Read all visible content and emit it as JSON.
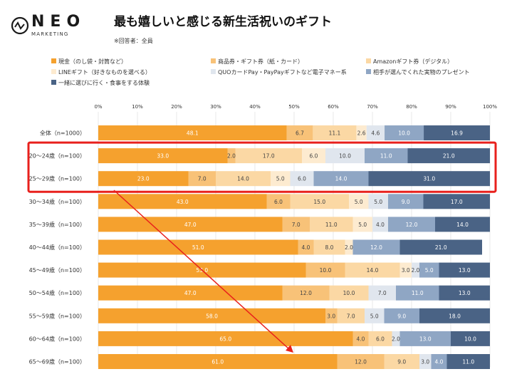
{
  "header": {
    "logo_text": "NEO",
    "logo_sub": "MARKETING",
    "title": "最も嬉しいと感じる新生活祝いのギフト",
    "note": "※回答者：全員"
  },
  "chart_data": {
    "type": "bar",
    "orientation": "horizontal",
    "stacked": true,
    "percent_stacked": true,
    "x_ticks": [
      "0%",
      "10%",
      "20%",
      "30%",
      "40%",
      "50%",
      "60%",
      "70%",
      "80%",
      "90%",
      "100%"
    ],
    "xlim": [
      0,
      100
    ],
    "grid": true,
    "legend_position": "top",
    "categories": [
      "全体（n=1000）",
      "20～24歳（n=100）",
      "25～29歳（n=100）",
      "30～34歳（n=100）",
      "35～39歳（n=100）",
      "40～44歳（n=100）",
      "45～49歳（n=100）",
      "50～54歳（n=100）",
      "55～59歳（n=100）",
      "60～64歳（n=100）",
      "65～69歳（n=100）"
    ],
    "series": [
      {
        "name": "現金（のし袋・封筒など）",
        "color": "#f5a12e",
        "values": [
          48.1,
          33.0,
          23.0,
          43.0,
          47.0,
          51.0,
          53.0,
          47.0,
          58.0,
          65.0,
          61.0
        ]
      },
      {
        "name": "商品券・ギフト券（紙・カード）",
        "color": "#f8c278",
        "values": [
          6.7,
          2.0,
          7.0,
          6.0,
          7.0,
          4.0,
          10.0,
          12.0,
          3.0,
          4.0,
          12.0
        ]
      },
      {
        "name": "Amazonギフト券（デジタル）",
        "color": "#fbd8a4",
        "values": [
          11.1,
          17.0,
          14.0,
          15.0,
          11.0,
          8.0,
          14.0,
          10.0,
          7.0,
          6.0,
          9.0
        ]
      },
      {
        "name": "LINEギフト（好きなものを選べる）",
        "color": "#fdebd0",
        "values": [
          2.6,
          6.0,
          5.0,
          5.0,
          5.0,
          2.0,
          3.0,
          0.0,
          0.0,
          0.0,
          0.0
        ]
      },
      {
        "name": "QUOカードPay・PayPayギフトなど電子マネー系",
        "color": "#e0e6ee",
        "values": [
          4.6,
          10.0,
          6.0,
          5.0,
          4.0,
          0.0,
          2.0,
          7.0,
          5.0,
          2.0,
          3.0
        ]
      },
      {
        "name": "相手が選んでくれた実物のプレゼント",
        "color": "#8fa6c4",
        "values": [
          10.0,
          11.0,
          14.0,
          9.0,
          12.0,
          12.0,
          5.0,
          11.0,
          9.0,
          13.0,
          4.0
        ]
      },
      {
        "name": "一緒に選びに行く・食事をする体験",
        "color": "#4a6385",
        "values": [
          16.9,
          21.0,
          31.0,
          17.0,
          14.0,
          21.0,
          13.0,
          13.0,
          18.0,
          10.0,
          11.0
        ]
      }
    ],
    "labels": [
      [
        "48.1",
        "6.7",
        "11.1",
        "2.6",
        "4.6",
        "10.0",
        "16.9"
      ],
      [
        "33.0",
        "2.0",
        "17.0",
        "6.0",
        "10.0",
        "11.0",
        "21.0"
      ],
      [
        "23.0",
        "7.0",
        "14.0",
        "5.0",
        "6.0",
        "14.0",
        "31.0"
      ],
      [
        "43.0",
        "6.0",
        "15.0",
        "5.0",
        "5.0",
        "9.0",
        "17.0"
      ],
      [
        "47.0",
        "7.0",
        "11.0",
        "5.0",
        "4.0",
        "12.0",
        "14.0"
      ],
      [
        "51.0",
        "4.0",
        "8.0",
        "2.0",
        "",
        "12.0",
        "21.0"
      ],
      [
        "53.0",
        "10.0",
        "14.0",
        "3.0",
        "2.0",
        "5.0",
        "13.0"
      ],
      [
        "47.0",
        "12.0",
        "10.0",
        "",
        "7.0",
        "11.0",
        "13.0"
      ],
      [
        "58.0",
        "3.0",
        "7.0",
        "",
        "5.0",
        "9.0",
        "18.0"
      ],
      [
        "65.0",
        "4.0",
        "6.0",
        "",
        "2.0",
        "13.0",
        "10.0"
      ],
      [
        "61.0",
        "12.0",
        "9.0",
        "",
        "3.0",
        "4.0",
        "11.0"
      ]
    ],
    "highlight_rows": [
      1,
      2
    ],
    "highlight_color": "#e8201c",
    "arrow_color": "#e8201c"
  }
}
